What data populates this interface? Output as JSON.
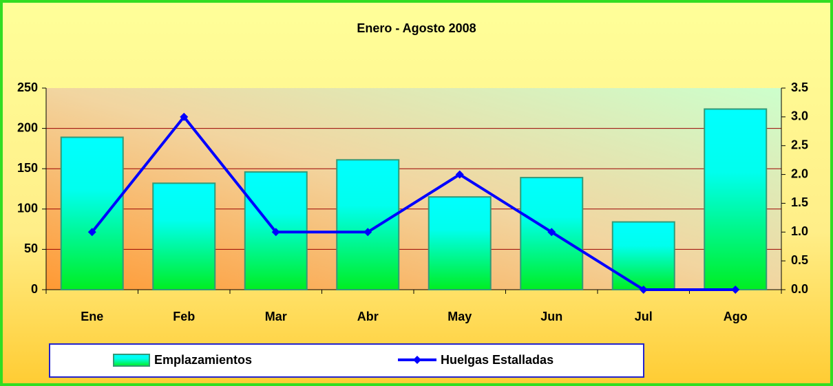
{
  "chart_data": {
    "type": "bar",
    "title": "Enero - Agosto 2008",
    "categories": [
      "Ene",
      "Feb",
      "Mar",
      "Abr",
      "May",
      "Jun",
      "Jul",
      "Ago"
    ],
    "series": [
      {
        "name": "Emplazamientos",
        "color": "#00ffff",
        "values": [
          189,
          132,
          146,
          161,
          115,
          139,
          84,
          224
        ]
      },
      {
        "name": "Huelgas Estalladas",
        "color": "#0000ff",
        "type": "line",
        "axis": "y2",
        "values": [
          1,
          3,
          1,
          1,
          2,
          1,
          0,
          0
        ]
      }
    ],
    "ylim": [
      0,
      250
    ],
    "yticks": [
      0,
      50,
      100,
      150,
      200,
      250
    ],
    "y2lim": [
      0,
      3.5
    ],
    "y2ticks": [
      {
        "value": 0,
        "label": "0.0"
      },
      {
        "value": 0.5,
        "label": "0.5"
      },
      {
        "value": 1,
        "label": "1.0"
      },
      {
        "value": 1.5,
        "label": "1.5"
      },
      {
        "value": 2,
        "label": "2.0"
      },
      {
        "value": 2.5,
        "label": "2.5"
      },
      {
        "value": 3,
        "label": "3.0"
      },
      {
        "value": 3.5,
        "label": "3.5"
      }
    ],
    "grid": true
  }
}
